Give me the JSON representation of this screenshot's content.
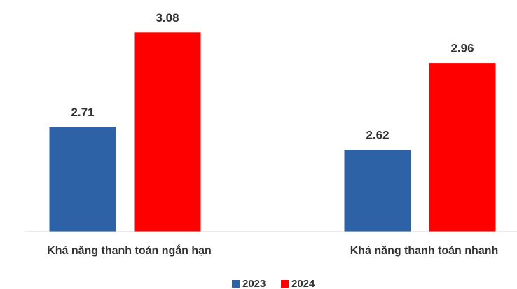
{
  "chart_data": {
    "type": "bar",
    "categories": [
      "Khả năng thanh toán ngắn hạn",
      "Khả năng thanh toán nhanh"
    ],
    "series": [
      {
        "name": "2023",
        "color": "#2e62a6",
        "values": [
          2.71,
          2.62
        ]
      },
      {
        "name": "2024",
        "color": "#ff0000",
        "values": [
          3.08,
          2.96
        ]
      }
    ],
    "ylim": [
      2.3,
      3.2
    ],
    "legend": "bottom"
  }
}
